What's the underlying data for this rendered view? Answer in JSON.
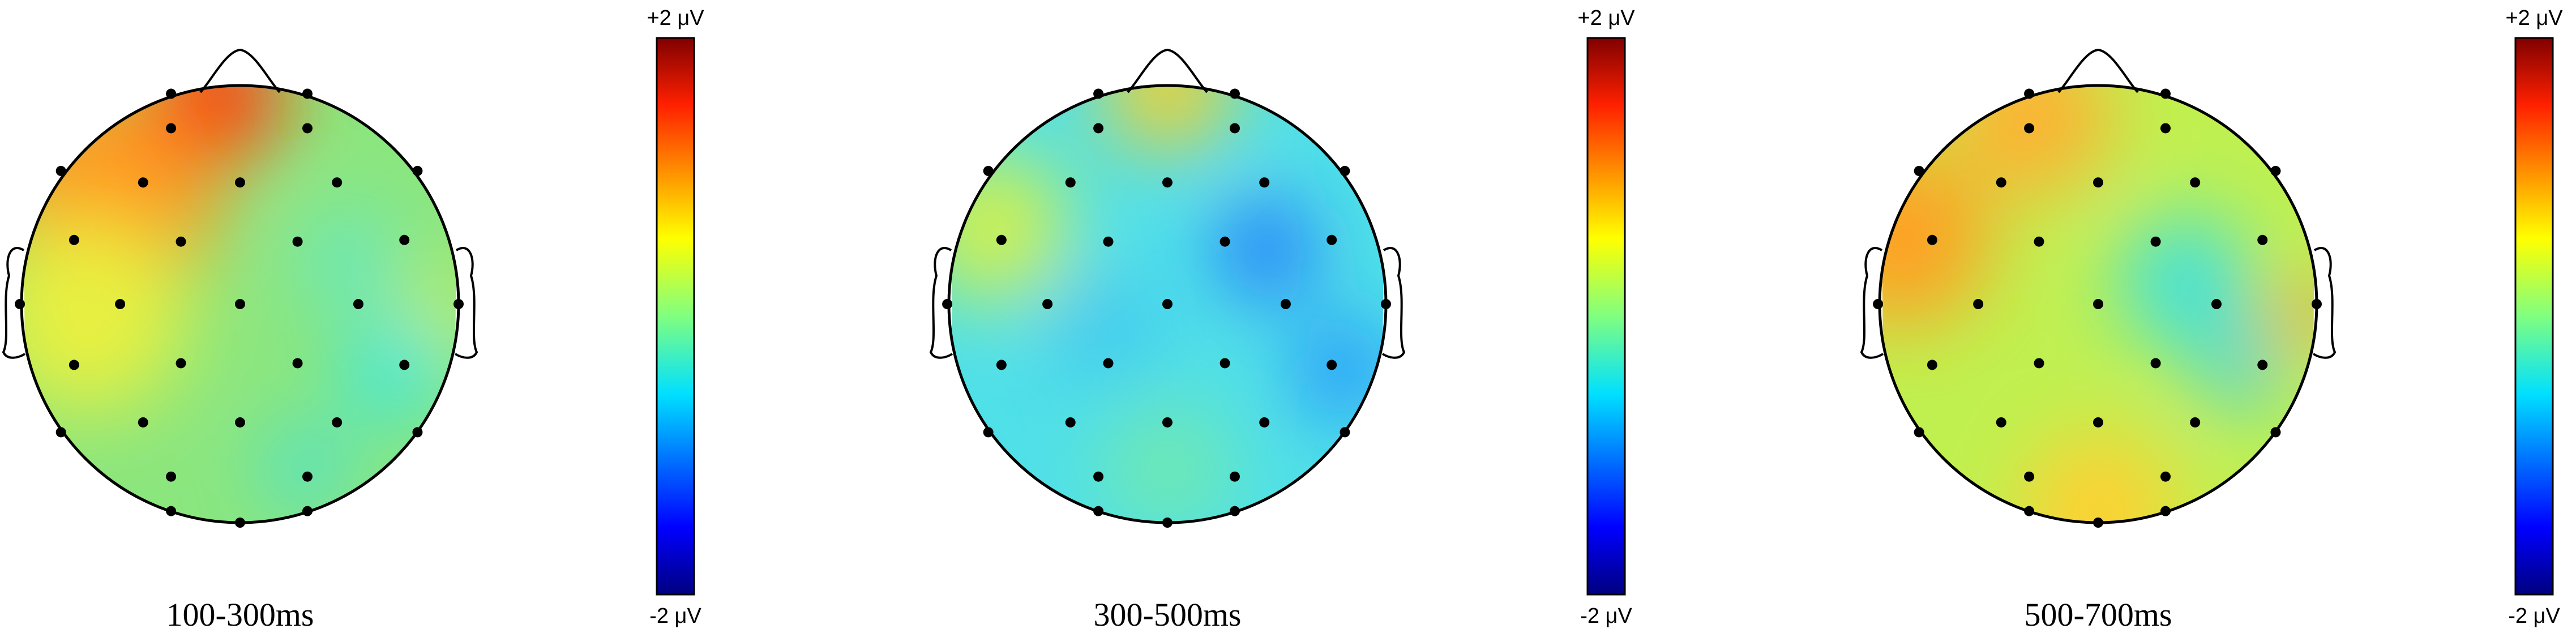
{
  "panels": [
    {
      "label": "100-300ms",
      "colorbar": {
        "max_label": "+2 μV",
        "min_label": "-2 μV"
      }
    },
    {
      "label": "300-500ms",
      "colorbar": {
        "max_label": "+2 μV",
        "min_label": "-2 μV"
      }
    },
    {
      "label": "500-700ms",
      "colorbar": {
        "max_label": "+2 μV",
        "min_label": "-2 μV"
      }
    }
  ]
}
